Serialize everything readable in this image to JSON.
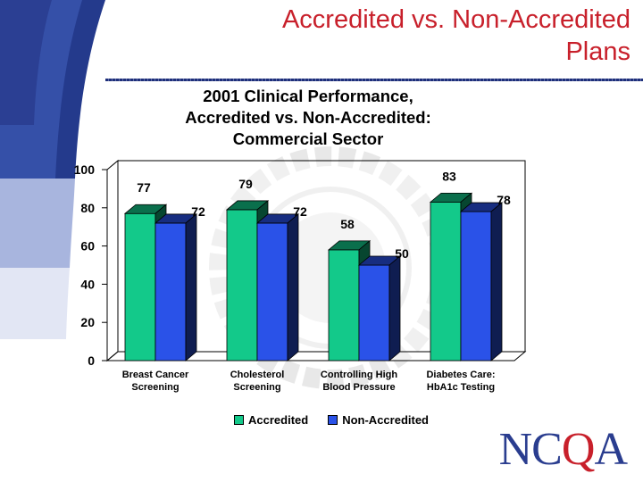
{
  "slide": {
    "title_line1": "Accredited vs. Non-Accredited",
    "title_line2": "Plans"
  },
  "logo": {
    "text_n": "NC",
    "text_q": "Q",
    "text_a": "A"
  },
  "colors": {
    "accredited": "#13c98a",
    "non_accredited": "#2a52e8",
    "title_red": "#c8202b",
    "brand_blue": "#1e2f7a"
  },
  "chart_data": {
    "type": "bar",
    "title": "2001 Clinical Performance, Accredited vs. Non-Accredited: Commercial Sector",
    "title_lines": [
      "2001 Clinical Performance,",
      "Accredited vs. Non-Accredited:",
      "Commercial Sector"
    ],
    "categories": [
      [
        "Breast Cancer",
        "Screening"
      ],
      [
        "Cholesterol",
        "Screening"
      ],
      [
        "Controlling High",
        "Blood Pressure"
      ],
      [
        "Diabetes Care:",
        "HbA1c Testing"
      ]
    ],
    "series": [
      {
        "name": "Accredited",
        "values": [
          77,
          79,
          58,
          83
        ]
      },
      {
        "name": "Non-Accredited",
        "values": [
          72,
          72,
          50,
          78
        ]
      }
    ],
    "ylim": [
      0,
      100
    ],
    "yticks": [
      0,
      20,
      40,
      60,
      80,
      100
    ],
    "xlabel": "",
    "ylabel": "",
    "legend_position": "bottom",
    "grid": false,
    "style": "3d-bar"
  }
}
